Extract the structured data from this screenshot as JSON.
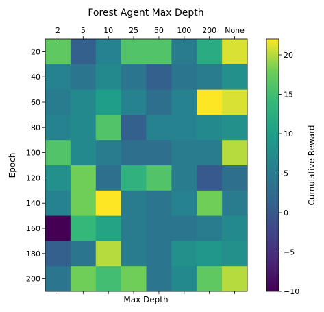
{
  "chart_data": {
    "type": "heatmap",
    "title": "Forest Agent Max Depth",
    "xlabel": "Max Depth",
    "ylabel": "Epoch",
    "x_categories": [
      "2",
      "5",
      "10",
      "25",
      "50",
      "100",
      "200",
      "None"
    ],
    "y_categories": [
      "20",
      "40",
      "60",
      "80",
      "100",
      "120",
      "140",
      "160",
      "180",
      "200"
    ],
    "values": [
      [
        17,
        1,
        6,
        16,
        16,
        5,
        12,
        21
      ],
      [
        6,
        4,
        7,
        4,
        1,
        4,
        5,
        8
      ],
      [
        5,
        7,
        10,
        6,
        3,
        6,
        22,
        21
      ],
      [
        6,
        7,
        16,
        1,
        6,
        6,
        7,
        8
      ],
      [
        16,
        7,
        5,
        3,
        3,
        5,
        5,
        20
      ],
      [
        8,
        18,
        3,
        13,
        16,
        5,
        0,
        3
      ],
      [
        6,
        18,
        22,
        5,
        4,
        6,
        18,
        5
      ],
      [
        -10,
        14,
        11,
        5,
        4,
        4,
        5,
        7
      ],
      [
        1,
        4,
        20,
        5,
        4,
        8,
        9,
        8
      ],
      [
        4,
        18,
        15,
        18,
        4,
        7,
        17,
        20
      ]
    ],
    "vmin": -10,
    "vmax": 22,
    "colormap": "viridis",
    "colorbar": {
      "label": "Cumulative Reward",
      "ticks": [
        -10,
        -5,
        0,
        5,
        10,
        15,
        20
      ]
    },
    "x_tick_position": "top",
    "grid": false
  }
}
